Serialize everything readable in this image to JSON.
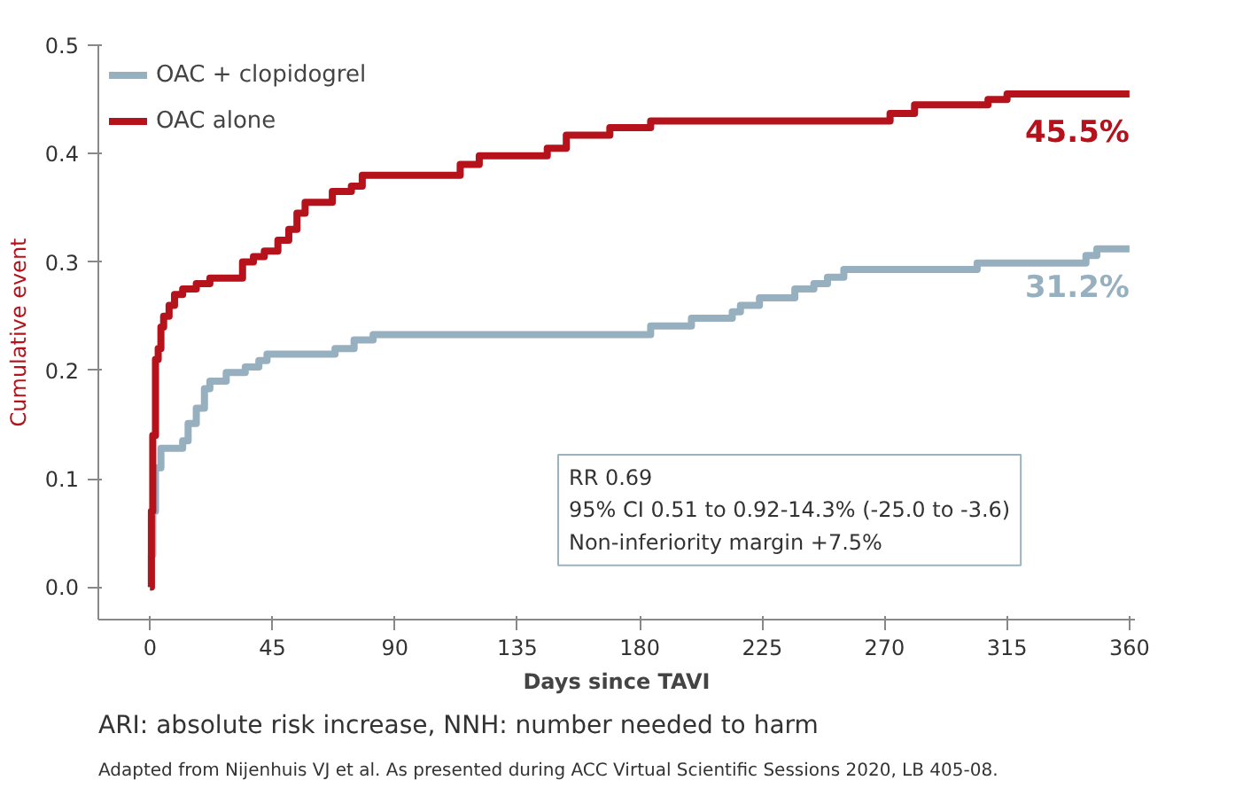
{
  "chart_data": {
    "type": "step",
    "xlabel": "Days since TAVI",
    "ylabel": "Cumulative event",
    "xlim": [
      -19,
      362
    ],
    "ylim": [
      -0.03,
      0.5
    ],
    "xticks": [
      0,
      45,
      90,
      135,
      180,
      225,
      270,
      315,
      360
    ],
    "yticks": [
      {
        "value": 0,
        "label": "0.0"
      },
      0.1,
      0.2,
      0.3,
      0.4,
      0.5
    ],
    "grid": false,
    "legend": "top left",
    "series": [
      {
        "name": "OAC + clopidogrel",
        "color": "#96b0bf",
        "x": [
          0,
          0.5,
          1,
          2,
          4,
          9,
          12,
          14,
          17,
          20,
          22,
          28,
          35,
          40,
          43,
          68,
          75,
          82,
          184,
          199,
          214,
          217,
          224,
          237,
          244,
          249,
          255,
          304,
          344,
          348,
          360
        ],
        "values": [
          0.0,
          0.03,
          0.07,
          0.11,
          0.128,
          0.128,
          0.135,
          0.151,
          0.165,
          0.183,
          0.19,
          0.198,
          0.203,
          0.209,
          0.215,
          0.22,
          0.228,
          0.233,
          0.241,
          0.248,
          0.254,
          0.26,
          0.267,
          0.275,
          0.28,
          0.286,
          0.293,
          0.299,
          0.306,
          0.312,
          0.312
        ]
      },
      {
        "name": "OAC alone",
        "color": "#b5121b",
        "x": [
          0,
          0.5,
          1,
          2,
          3,
          4,
          5,
          7,
          9,
          12,
          17,
          22,
          34,
          38,
          42,
          47,
          51,
          54,
          57,
          67,
          74,
          78,
          114,
          121,
          146,
          153,
          169,
          184,
          272,
          281,
          308,
          315,
          360
        ],
        "values": [
          0.0,
          0.07,
          0.14,
          0.21,
          0.22,
          0.24,
          0.25,
          0.26,
          0.27,
          0.275,
          0.28,
          0.285,
          0.3,
          0.305,
          0.31,
          0.32,
          0.33,
          0.345,
          0.355,
          0.365,
          0.37,
          0.38,
          0.39,
          0.398,
          0.405,
          0.417,
          0.424,
          0.43,
          0.437,
          0.445,
          0.45,
          0.455,
          0.455
        ]
      }
    ],
    "annotations": [
      {
        "text": "45.5%",
        "x": 360,
        "y": 0.455
      },
      {
        "text": "31.2%",
        "x": 360,
        "y": 0.312
      },
      "RR 0.69",
      "95% CI 0.51 to 0.92-14.3% (-25.0 to -3.6)",
      "Non-inferiority margin +7.5%",
      "ARI: absolute risk increase, NNH: number needed to harm",
      "Adapted from Nijenhuis VJ et al. As presented during ACC Virtual Scientific Sessions 2020, LB 405-08."
    ]
  }
}
